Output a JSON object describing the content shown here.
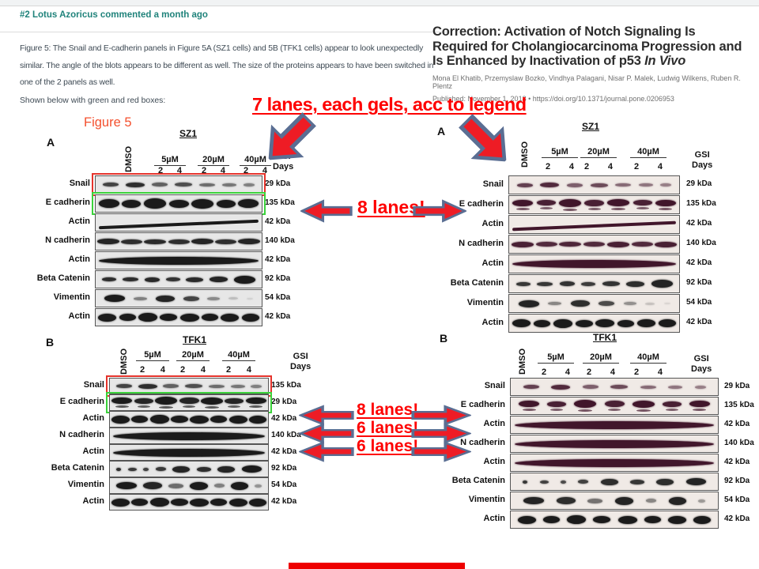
{
  "ui": {
    "comment": {
      "number": "#2",
      "author": "Lotus Azoricus",
      "meta": "commented a month ago",
      "body": "Figure 5: The Snail and E-cadherin panels in Figure 5A (SZ1 cells) and 5B (TFK1 cells) appear to look unexpectedly similar. The angle of the blots appears to be different as well. The size of the proteins appears to have been switched in one of the 2 panels as well.",
      "note": "Shown below with green and red boxes:"
    },
    "paper": {
      "title": "Correction: Activation of Notch Signaling Is Required for Cholangiocarcinoma Progression and Is Enhanced by Inactivation of p53",
      "title_italic": "In Vivo",
      "authors": "Mona El Khatib, Przemyslaw Bozko, Vindhya Palagani, Nisar P. Malek, Ludwig Wilkens, Ruben R. Plentz",
      "published": "Published: November 1, 2018",
      "bullet": "•",
      "doi": "https://doi.org/10.1371/journal.pone.0206953"
    },
    "annotations": {
      "top": "7 lanes, each gels, acc to legend",
      "mid": "8 lanes!",
      "bottom": [
        "8 lanes!",
        "6 lanes!",
        "6 lanes!"
      ]
    },
    "figure_label": "Figure 5",
    "colors": {
      "annotation_red": "#fe0000",
      "arrow_fill": "#ee1c25",
      "arrow_stroke": "#5a6e93",
      "teal": "#20837b",
      "figure_label_red": "#f4502e",
      "box_red": "#e5342c",
      "box_green": "#3bd23b",
      "bottom_bar": "#ee0000"
    }
  },
  "panels": [
    {
      "id": "left-a",
      "letter": "A",
      "cell_line": "SZ1",
      "control": "DMSO",
      "doses": [
        "5µM",
        "20µM",
        "40µM"
      ],
      "day_labels": [
        "2",
        "4"
      ],
      "gsi": [
        "GSI",
        "Days"
      ],
      "band_color": "#1b1b1b",
      "strip_bg": "#e7e7e7",
      "rows": [
        {
          "label": "Snail",
          "kda": "29 kDa",
          "pattern": "faint",
          "box": "red"
        },
        {
          "label": "E cadherin",
          "kda": "135 kDa",
          "pattern": "heavy",
          "box": "green"
        },
        {
          "label": "Actin",
          "kda": "42 kDa",
          "pattern": "tilt"
        },
        {
          "label": "N cadherin",
          "kda": "140 kDa",
          "pattern": "wave"
        },
        {
          "label": "Actin",
          "kda": "42 kDa",
          "pattern": "smear"
        },
        {
          "label": "Beta Catenin",
          "kda": "92 kDa",
          "pattern": "dash"
        },
        {
          "label": "Vimentin",
          "kda": "54 kDa",
          "pattern": "fade"
        },
        {
          "label": "Actin",
          "kda": "42 kDa",
          "pattern": "chunky"
        }
      ]
    },
    {
      "id": "left-b",
      "letter": "B",
      "cell_line": "TFK1",
      "control": "DMSO",
      "doses": [
        "5µM",
        "20µM",
        "40µM"
      ],
      "day_labels": [
        "2",
        "4"
      ],
      "gsi": [
        "GSI",
        "Days"
      ],
      "band_color": "#1b1b1b",
      "strip_bg": "#e7e7e7",
      "rows": [
        {
          "label": "Snail",
          "kda": "135 kDa",
          "pattern": "faint",
          "box": "red"
        },
        {
          "label": "E cadherin",
          "kda": "29 kDa",
          "pattern": "double",
          "box": "green"
        },
        {
          "label": "Actin",
          "kda": "42 kDa",
          "pattern": "chunky"
        },
        {
          "label": "N cadherin",
          "kda": "140 kDa",
          "pattern": "smear"
        },
        {
          "label": "Actin",
          "kda": "42 kDa",
          "pattern": "smear"
        },
        {
          "label": "Beta Catenin",
          "kda": "92 kDa",
          "pattern": "dots"
        },
        {
          "label": "Vimentin",
          "kda": "54 kDa",
          "pattern": "alt"
        },
        {
          "label": "Actin",
          "kda": "42 kDa",
          "pattern": "chunky"
        }
      ]
    },
    {
      "id": "right-a",
      "letter": "A",
      "cell_line": "SZ1",
      "control": "DMSO",
      "doses": [
        "5µM",
        "20µM",
        "40µM"
      ],
      "day_labels": [
        "2",
        "4"
      ],
      "gsi": [
        "GSI",
        "Days"
      ],
      "band_color": "#41162b",
      "strip_bg": "#f0eae6",
      "rows": [
        {
          "label": "Snail",
          "kda": "29 kDa",
          "pattern": "faint"
        },
        {
          "label": "E cadherin",
          "kda": "135 kDa",
          "pattern": "double"
        },
        {
          "label": "Actin",
          "kda": "42 kDa",
          "pattern": "tilt"
        },
        {
          "label": "N cadherin",
          "kda": "140 kDa",
          "pattern": "wave"
        },
        {
          "label": "Actin",
          "kda": "42 kDa",
          "pattern": "smear"
        },
        {
          "label": "Beta Catenin",
          "kda": "92 kDa",
          "pattern": "dash",
          "band_color": "#242424"
        },
        {
          "label": "Vimentin",
          "kda": "54 kDa",
          "pattern": "fade",
          "band_color": "#242424"
        },
        {
          "label": "Actin",
          "kda": "42 kDa",
          "pattern": "chunky",
          "band_color": "#1b1b1b"
        }
      ]
    },
    {
      "id": "right-b",
      "letter": "B",
      "cell_line": "TFK1",
      "control": "DMSO",
      "doses": [
        "5µM",
        "20µM",
        "40µM"
      ],
      "day_labels": [
        "2",
        "4"
      ],
      "gsi": [
        "GSI",
        "Days"
      ],
      "band_color": "#41162b",
      "strip_bg": "#f0eae6",
      "rows": [
        {
          "label": "Snail",
          "kda": "29 kDa",
          "pattern": "faint"
        },
        {
          "label": "E cadherin",
          "kda": "135 kDa",
          "pattern": "double"
        },
        {
          "label": "Actin",
          "kda": "42 kDa",
          "pattern": "smear"
        },
        {
          "label": "N cadherin",
          "kda": "140 kDa",
          "pattern": "smear"
        },
        {
          "label": "Actin",
          "kda": "42 kDa",
          "pattern": "smear"
        },
        {
          "label": "Beta Catenin",
          "kda": "92 kDa",
          "pattern": "dots",
          "band_color": "#242424"
        },
        {
          "label": "Vimentin",
          "kda": "54 kDa",
          "pattern": "alt",
          "band_color": "#242424"
        },
        {
          "label": "Actin",
          "kda": "42 kDa",
          "pattern": "chunky",
          "band_color": "#1b1b1b"
        }
      ]
    }
  ]
}
